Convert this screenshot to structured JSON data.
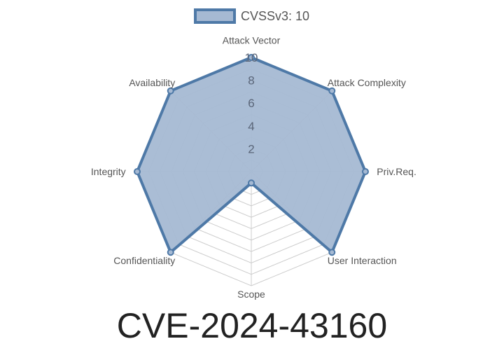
{
  "chart_data": {
    "type": "radar",
    "title": "CVE-2024-43160",
    "axes": [
      "Attack Vector",
      "Attack Complexity",
      "Priv.Req.",
      "User Interaction",
      "Scope",
      "Confidentiality",
      "Integrity",
      "Availability"
    ],
    "series": [
      {
        "name": "CVSSv3: 10",
        "values": [
          10,
          10,
          10,
          10,
          1,
          10,
          10,
          10
        ]
      }
    ],
    "rlim": [
      0,
      10
    ],
    "ticks": [
      "2",
      "4",
      "6",
      "8",
      "10"
    ],
    "tick_values": [
      2,
      4,
      6,
      8,
      10
    ],
    "legend": "top",
    "colors": {
      "line": "#4e79a7",
      "fill": "#a5b9d3",
      "grid": "#cccccc"
    }
  }
}
